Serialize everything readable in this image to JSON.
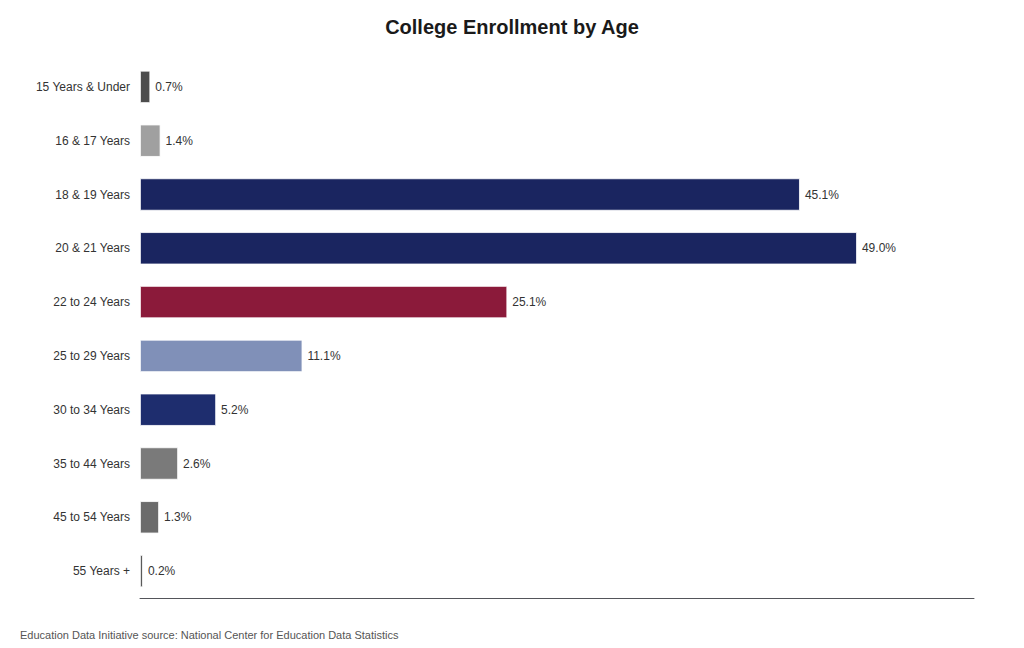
{
  "chart_data": {
    "type": "bar",
    "orientation": "horizontal",
    "title": "College Enrollment by Age",
    "categories": [
      "15 Years & Under",
      "16 & 17 Years",
      "18 & 19 Years",
      "20 & 21 Years",
      "22 to 24 Years",
      "25 to 29 Years",
      "30 to 34 Years",
      "35 to 44 Years",
      "45 to 54 Years",
      "55 Years +"
    ],
    "values": [
      0.7,
      1.4,
      45.1,
      49.0,
      25.1,
      11.1,
      5.2,
      2.6,
      1.3,
      0.2
    ],
    "value_labels": [
      "0.7%",
      "1.4%",
      "45.1%",
      "49.0%",
      "25.1%",
      "11.1%",
      "5.2%",
      "2.6%",
      "1.3%",
      "0.2%"
    ],
    "colors": [
      "#4d4d4d",
      "#a0a0a0",
      "#1a2560",
      "#1a2560",
      "#8b1a3a",
      "#8090b8",
      "#1e2d6e",
      "#7a7a7a",
      "#6b6b6b",
      "#5a5a5a"
    ],
    "xlim": [
      0,
      57
    ],
    "data_labels": true,
    "tick_labels": "y",
    "grid": false,
    "annotations": [
      "Education Data Initiative source: National Center for Education Data Statistics"
    ]
  }
}
